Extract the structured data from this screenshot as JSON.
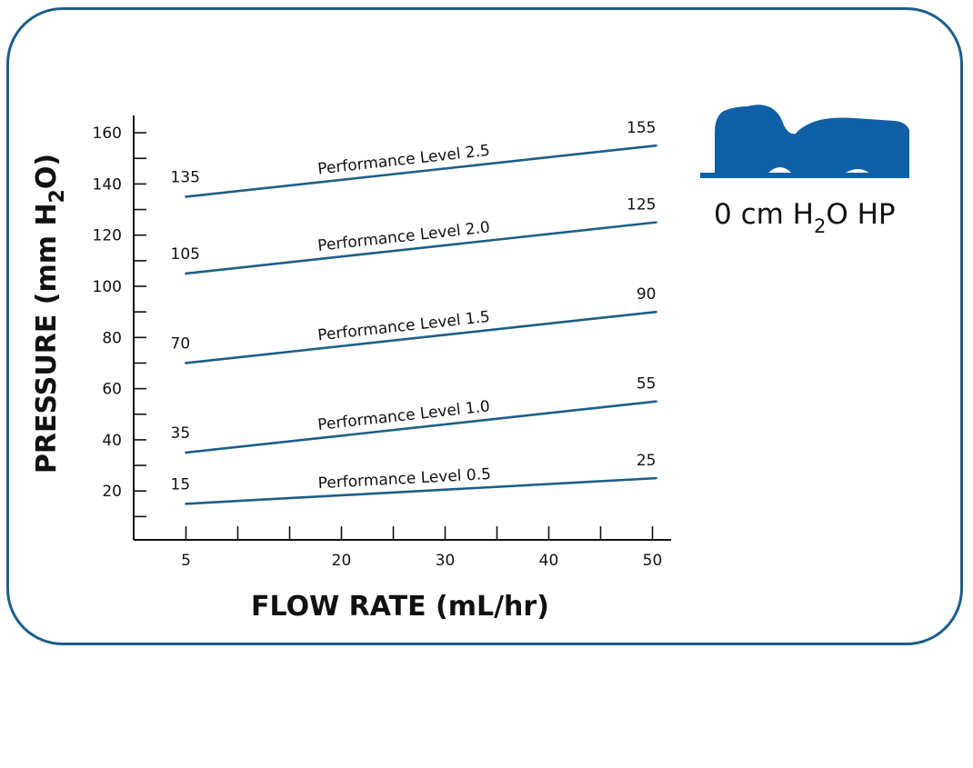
{
  "chart_data": {
    "type": "line",
    "xlabel": "FLOW RATE (mL/hr)",
    "ylabel_parts": {
      "main": "PRESSURE (mm H",
      "sub": "2",
      "end": "O)"
    },
    "x_ticks": [
      5,
      20,
      30,
      40,
      50
    ],
    "y_ticks": [
      20,
      40,
      60,
      80,
      100,
      120,
      140,
      160
    ],
    "xlim": [
      0,
      52
    ],
    "ylim": [
      0,
      168
    ],
    "grid": false,
    "series": [
      {
        "name": "Performance Level 0.5",
        "x": [
          5,
          50
        ],
        "values": [
          15,
          25
        ],
        "start_label": "15",
        "end_label": "25"
      },
      {
        "name": "Performance Level 1.0",
        "x": [
          5,
          50
        ],
        "values": [
          35,
          55
        ],
        "start_label": "35",
        "end_label": "55"
      },
      {
        "name": "Performance Level 1.5",
        "x": [
          5,
          50
        ],
        "values": [
          70,
          90
        ],
        "start_label": "70",
        "end_label": "90"
      },
      {
        "name": "Performance Level 2.0",
        "x": [
          5,
          50
        ],
        "values": [
          105,
          125
        ],
        "start_label": "105",
        "end_label": "125"
      },
      {
        "name": "Performance Level 2.5",
        "x": [
          5,
          50
        ],
        "values": [
          135,
          155
        ],
        "start_label": "135",
        "end_label": "155"
      }
    ]
  },
  "caption": {
    "prefix": "0 cm H",
    "sub": "2",
    "suffix": "O HP"
  },
  "colors": {
    "line": "#1c5e8a",
    "frame": "#1c5e8a",
    "icon": "#0f60a6",
    "axis": "#111111"
  },
  "icon": "reclining-head-silhouette-icon"
}
